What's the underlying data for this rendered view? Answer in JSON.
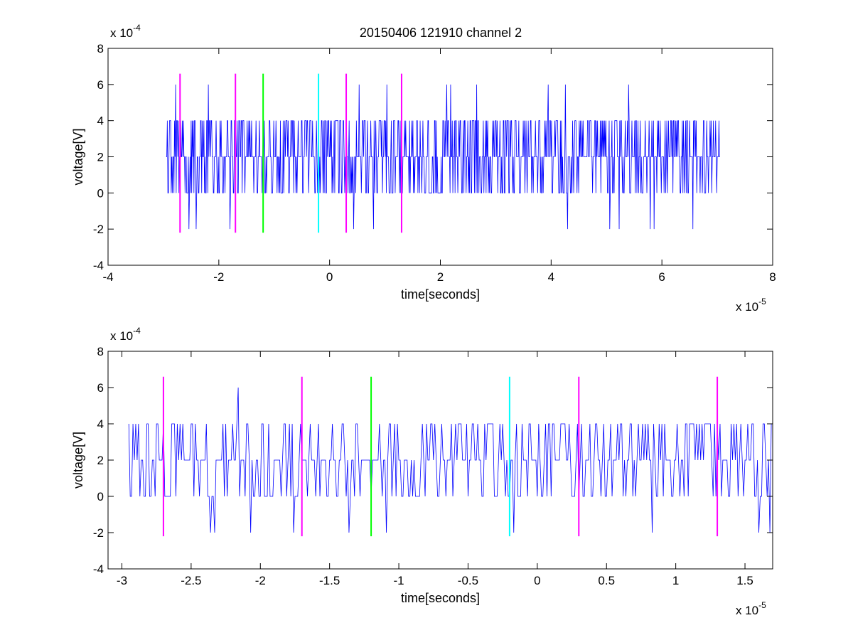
{
  "figure_title": "20150406 121910 channel 2",
  "chart_data": [
    {
      "type": "line",
      "title": "20150406 121910 channel 2",
      "xlabel": "time[seconds]",
      "ylabel": "voltage[V]",
      "x_exponent_label": "x 10",
      "x_exponent": "-5",
      "y_exponent_label": "x 10",
      "y_exponent": "-4",
      "xlim": [
        -4,
        8
      ],
      "ylim": [
        -4,
        8
      ],
      "xticks": [
        "-4",
        "-2",
        "0",
        "2",
        "4",
        "6",
        "8"
      ],
      "yticks": [
        "-4",
        "-2",
        "0",
        "2",
        "4",
        "6",
        "8"
      ],
      "grid": false,
      "series": [
        {
          "color": "#0000ff",
          "x_range": [
            -2.95,
            7.05
          ],
          "levels": [
            -2,
            0,
            2,
            4,
            6
          ],
          "samples": 1000,
          "description_of_values": "quantized noise mostly between 0 and 4 (x1e-4 V), occasional spikes to 6 and -2"
        }
      ],
      "markers": [
        {
          "x": -2.7,
          "y_range": [
            -2.2,
            6.6
          ],
          "color": "#ff00ff"
        },
        {
          "x": -1.7,
          "y_range": [
            -2.2,
            6.6
          ],
          "color": "#ff00ff"
        },
        {
          "x": -1.2,
          "y_range": [
            -2.2,
            6.6
          ],
          "color": "#00ff00"
        },
        {
          "x": -0.2,
          "y_range": [
            -2.2,
            6.6
          ],
          "color": "#00ffff"
        },
        {
          "x": 0.3,
          "y_range": [
            -2.2,
            6.6
          ],
          "color": "#ff00ff"
        },
        {
          "x": 1.3,
          "y_range": [
            -2.2,
            6.6
          ],
          "color": "#ff00ff"
        }
      ]
    },
    {
      "type": "line",
      "title": "",
      "xlabel": "time[seconds]",
      "ylabel": "voltage[V]",
      "x_exponent_label": "x 10",
      "x_exponent": "-5",
      "y_exponent_label": "x 10",
      "y_exponent": "-4",
      "xlim": [
        -3.1,
        1.7
      ],
      "ylim": [
        -4,
        8
      ],
      "xticks": [
        "-3",
        "-2.5",
        "-2",
        "-1.5",
        "-1",
        "-0.5",
        "0",
        "0.5",
        "1",
        "1.5"
      ],
      "xtick_values": [
        -3,
        -2.5,
        -2,
        -1.5,
        -1,
        -0.5,
        0,
        0.5,
        1,
        1.5
      ],
      "yticks": [
        "-4",
        "-2",
        "0",
        "2",
        "4",
        "6",
        "8"
      ],
      "grid": false,
      "series": [
        {
          "color": "#0000ff",
          "x_range": [
            -2.95,
            1.7
          ],
          "levels": [
            -2,
            0,
            2,
            4,
            6
          ],
          "samples": 466,
          "description_of_values": "zoomed view of the same quantized noise signal"
        }
      ],
      "markers": [
        {
          "x": -2.7,
          "y_range": [
            -2.2,
            6.6
          ],
          "color": "#ff00ff"
        },
        {
          "x": -1.7,
          "y_range": [
            -2.2,
            6.6
          ],
          "color": "#ff00ff"
        },
        {
          "x": -1.2,
          "y_range": [
            -2.2,
            6.6
          ],
          "color": "#00ff00"
        },
        {
          "x": -0.2,
          "y_range": [
            -2.2,
            6.6
          ],
          "color": "#00ffff"
        },
        {
          "x": 0.3,
          "y_range": [
            -2.2,
            6.6
          ],
          "color": "#ff00ff"
        },
        {
          "x": 1.3,
          "y_range": [
            -2.2,
            6.6
          ],
          "color": "#ff00ff"
        }
      ]
    }
  ]
}
